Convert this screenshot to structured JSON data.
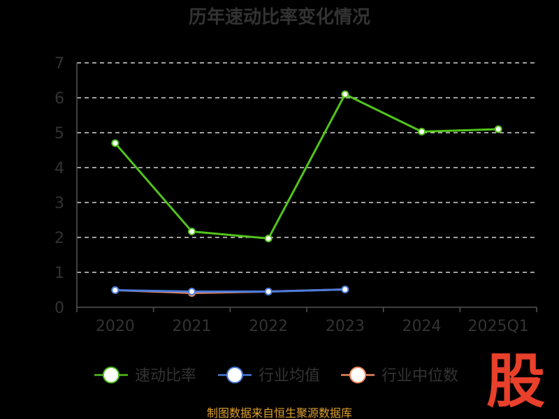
{
  "chart_data": {
    "type": "line",
    "title": "历年速动比率变化情况",
    "categories": [
      "2020",
      "2021",
      "2022",
      "2023",
      "2024",
      "2025Q1"
    ],
    "ylim": [
      0,
      7
    ],
    "yticks": [
      "0",
      "1",
      "2",
      "3",
      "4",
      "5",
      "6",
      "7"
    ],
    "grid": true,
    "legend_position": "bottom",
    "series": [
      {
        "name": "速动比率",
        "color": "#52c41a",
        "values": [
          4.7,
          2.17,
          1.97,
          6.1,
          5.03,
          5.1
        ]
      },
      {
        "name": "行业均值",
        "color": "#4a7be0",
        "values": [
          0.49,
          0.45,
          0.45,
          0.51,
          null,
          null
        ]
      },
      {
        "name": "行业中位数",
        "color": "#f08a5d",
        "values": [
          0.49,
          0.41,
          0.45,
          0.51,
          null,
          null
        ]
      }
    ]
  },
  "footer": {
    "source": "制图数据来自恒生聚源数据库"
  },
  "logo": {
    "text": "股"
  }
}
